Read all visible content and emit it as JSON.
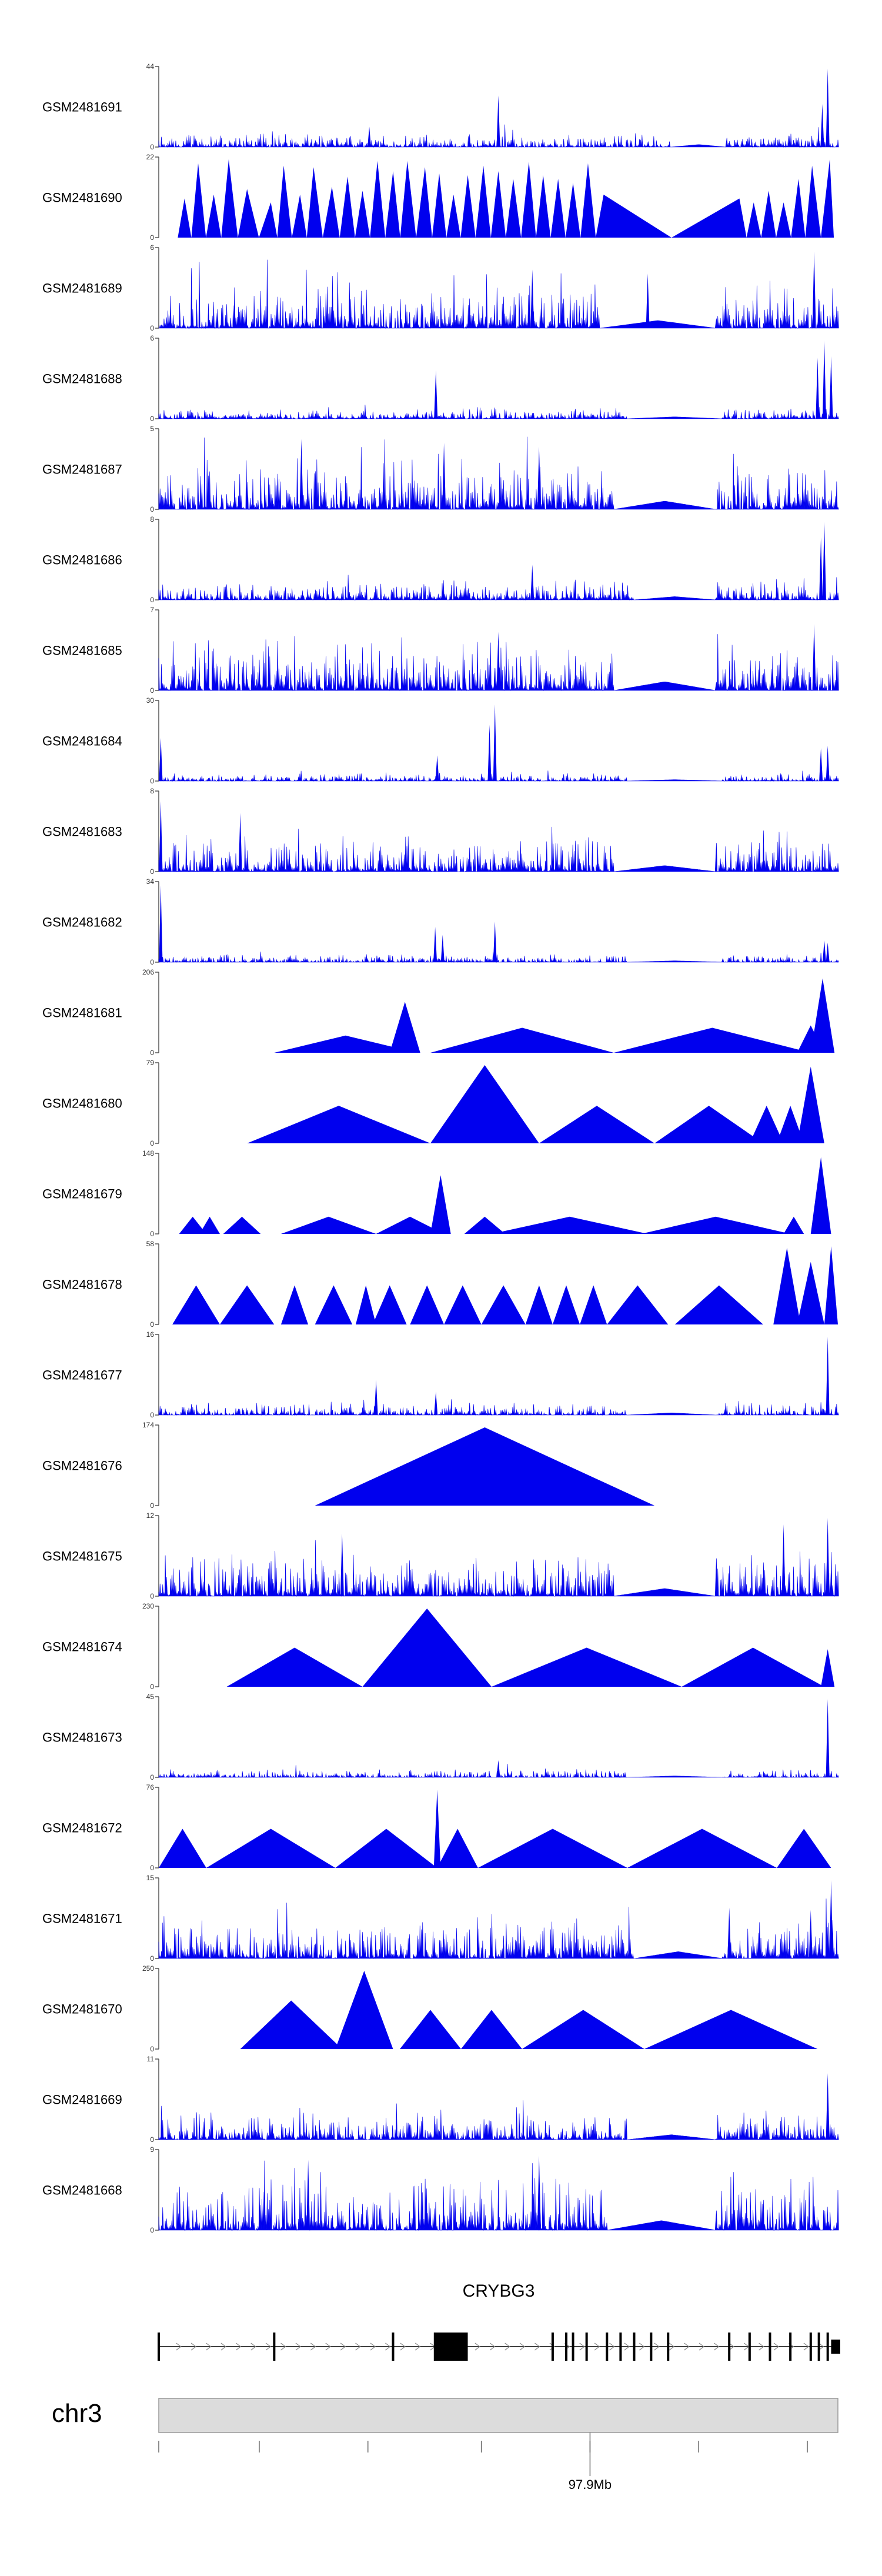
{
  "chart_data": {
    "type": "area",
    "title": "",
    "fill_color": "#0000ee",
    "series": [
      {
        "name": "GSM2481691",
        "ylim": [
          0,
          44
        ],
        "ymin_label": "0",
        "ymax_label": "44",
        "pattern": "spiky",
        "base": 0.09,
        "seed": 1,
        "gaps": [
          [
            0.755,
            0.835
          ]
        ],
        "peaks": [
          [
            0.5,
            0.66
          ],
          [
            0.31,
            0.26
          ],
          [
            0.985,
            1.0
          ],
          [
            0.977,
            0.55
          ]
        ]
      },
      {
        "name": "GSM2481690",
        "ylim": [
          0,
          22
        ],
        "ymin_label": "0",
        "ymax_label": "22",
        "pattern": "triangles",
        "seed": 2,
        "peaks": [
          [
            0.038,
            0.5
          ],
          [
            0.058,
            0.95
          ],
          [
            0.081,
            0.55
          ],
          [
            0.103,
            1.0
          ],
          [
            0.13,
            0.62
          ],
          [
            0.165,
            0.45
          ],
          [
            0.184,
            0.92
          ],
          [
            0.208,
            0.55
          ],
          [
            0.228,
            0.9
          ],
          [
            0.255,
            0.65
          ],
          [
            0.278,
            0.78
          ],
          [
            0.3,
            0.6
          ],
          [
            0.322,
            0.98
          ],
          [
            0.345,
            0.85
          ],
          [
            0.366,
            0.98
          ],
          [
            0.392,
            0.9
          ],
          [
            0.413,
            0.82
          ],
          [
            0.434,
            0.55
          ],
          [
            0.455,
            0.8
          ],
          [
            0.478,
            0.92
          ],
          [
            0.5,
            0.85
          ],
          [
            0.522,
            0.75
          ],
          [
            0.545,
            0.97
          ],
          [
            0.566,
            0.8
          ],
          [
            0.588,
            0.75
          ],
          [
            0.61,
            0.7
          ],
          [
            0.632,
            0.95
          ],
          [
            0.655,
            0.55
          ],
          [
            0.855,
            0.5
          ],
          [
            0.876,
            0.45
          ],
          [
            0.898,
            0.6
          ],
          [
            0.92,
            0.45
          ],
          [
            0.942,
            0.75
          ],
          [
            0.962,
            0.92
          ],
          [
            0.988,
            1.0
          ]
        ]
      },
      {
        "name": "GSM2481689",
        "ylim": [
          0,
          6
        ],
        "ymin_label": "0",
        "ymax_label": "6",
        "pattern": "spiky",
        "base": 0.28,
        "seed": 3,
        "gaps": [
          [
            0.65,
            0.82
          ]
        ],
        "peaks": [
          [
            0.965,
            0.98
          ],
          [
            0.72,
            0.7
          ],
          [
            0.55,
            0.75
          ]
        ]
      },
      {
        "name": "GSM2481688",
        "ylim": [
          0,
          6
        ],
        "ymin_label": "0",
        "ymax_label": "6",
        "pattern": "spiky",
        "base": 0.07,
        "seed": 4,
        "gaps": [
          [
            0.69,
            0.83
          ]
        ],
        "peaks": [
          [
            0.408,
            0.62
          ],
          [
            0.98,
            1.0
          ],
          [
            0.97,
            0.78
          ],
          [
            0.99,
            0.8
          ]
        ]
      },
      {
        "name": "GSM2481687",
        "ylim": [
          0,
          5
        ],
        "ymin_label": "0",
        "ymax_label": "5",
        "pattern": "spiky",
        "base": 0.3,
        "seed": 5,
        "gaps": [
          [
            0.67,
            0.82
          ]
        ],
        "peaks": [
          [
            0.21,
            0.9
          ],
          [
            0.42,
            0.85
          ],
          [
            0.56,
            0.8
          ]
        ]
      },
      {
        "name": "GSM2481686",
        "ylim": [
          0,
          8
        ],
        "ymin_label": "0",
        "ymax_label": "8",
        "pattern": "spiky",
        "base": 0.12,
        "seed": 6,
        "gaps": [
          [
            0.7,
            0.82
          ]
        ],
        "peaks": [
          [
            0.98,
            1.0
          ],
          [
            0.975,
            0.8
          ],
          [
            0.55,
            0.45
          ]
        ]
      },
      {
        "name": "GSM2481685",
        "ylim": [
          0,
          7
        ],
        "ymin_label": "0",
        "ymax_label": "7",
        "pattern": "spiky",
        "base": 0.32,
        "seed": 7,
        "gaps": [
          [
            0.67,
            0.82
          ]
        ],
        "peaks": [
          [
            0.5,
            0.75
          ],
          [
            0.965,
            0.85
          ]
        ]
      },
      {
        "name": "GSM2481684",
        "ylim": [
          0,
          30
        ],
        "ymin_label": "0",
        "ymax_label": "30",
        "pattern": "spiky",
        "base": 0.05,
        "seed": 8,
        "gaps": [
          [
            0.69,
            0.83
          ]
        ],
        "peaks": [
          [
            0.495,
            0.98
          ],
          [
            0.487,
            0.72
          ],
          [
            0.41,
            0.33
          ],
          [
            0.975,
            0.42
          ],
          [
            0.985,
            0.45
          ],
          [
            0.003,
            0.55
          ]
        ]
      },
      {
        "name": "GSM2481683",
        "ylim": [
          0,
          8
        ],
        "ymin_label": "0",
        "ymax_label": "8",
        "pattern": "spiky",
        "base": 0.22,
        "seed": 9,
        "gaps": [
          [
            0.67,
            0.82
          ]
        ],
        "peaks": [
          [
            0.003,
            0.9
          ],
          [
            0.12,
            0.75
          ]
        ]
      },
      {
        "name": "GSM2481682",
        "ylim": [
          0,
          34
        ],
        "ymin_label": "0",
        "ymax_label": "34",
        "pattern": "spiky",
        "base": 0.05,
        "seed": 10,
        "gaps": [
          [
            0.69,
            0.83
          ]
        ],
        "peaks": [
          [
            0.003,
            0.98
          ],
          [
            0.407,
            0.45
          ],
          [
            0.418,
            0.35
          ],
          [
            0.495,
            0.52
          ],
          [
            0.98,
            0.28
          ],
          [
            0.985,
            0.25
          ]
        ]
      },
      {
        "name": "GSM2481681",
        "ylim": [
          0,
          206
        ],
        "ymin_label": "0",
        "ymax_label": "206",
        "pattern": "triangles",
        "seed": 11,
        "segments": [
          [
            0.17,
            0.38,
            0.22
          ],
          [
            0.34,
            0.385,
            0.65
          ],
          [
            0.4,
            0.67,
            0.32
          ],
          [
            0.67,
            0.96,
            0.32
          ],
          [
            0.94,
            0.98,
            0.35
          ],
          [
            0.96,
            0.995,
            0.95
          ]
        ]
      },
      {
        "name": "GSM2481680",
        "ylim": [
          0,
          79
        ],
        "ymin_label": "0",
        "ymax_label": "79",
        "pattern": "triangles",
        "seed": 12,
        "segments": [
          [
            0.13,
            0.4,
            0.48
          ],
          [
            0.4,
            0.56,
            1.0
          ],
          [
            0.56,
            0.73,
            0.48
          ],
          [
            0.73,
            0.89,
            0.48
          ],
          [
            0.87,
            0.92,
            0.48
          ],
          [
            0.91,
            0.95,
            0.48
          ],
          [
            0.94,
            0.98,
            0.98
          ]
        ]
      },
      {
        "name": "GSM2481679",
        "ylim": [
          0,
          148
        ],
        "ymin_label": "0",
        "ymax_label": "148",
        "pattern": "triangles",
        "seed": 13,
        "segments": [
          [
            0.03,
            0.07,
            0.22
          ],
          [
            0.06,
            0.09,
            0.22
          ],
          [
            0.095,
            0.15,
            0.22
          ],
          [
            0.18,
            0.32,
            0.22
          ],
          [
            0.32,
            0.42,
            0.22
          ],
          [
            0.4,
            0.43,
            0.75
          ],
          [
            0.45,
            0.51,
            0.22
          ],
          [
            0.49,
            0.72,
            0.22
          ],
          [
            0.71,
            0.93,
            0.22
          ],
          [
            0.92,
            0.95,
            0.22
          ],
          [
            0.96,
            0.99,
            0.98
          ]
        ]
      },
      {
        "name": "GSM2481678",
        "ylim": [
          0,
          58
        ],
        "ymin_label": "0",
        "ymax_label": "58",
        "pattern": "triangles",
        "seed": 14,
        "segments": [
          [
            0.02,
            0.09,
            0.5
          ],
          [
            0.09,
            0.17,
            0.5
          ],
          [
            0.18,
            0.22,
            0.5
          ],
          [
            0.23,
            0.285,
            0.5
          ],
          [
            0.29,
            0.32,
            0.5
          ],
          [
            0.315,
            0.365,
            0.5
          ],
          [
            0.37,
            0.42,
            0.5
          ],
          [
            0.42,
            0.475,
            0.5
          ],
          [
            0.475,
            0.54,
            0.5
          ],
          [
            0.54,
            0.58,
            0.5
          ],
          [
            0.58,
            0.62,
            0.5
          ],
          [
            0.62,
            0.66,
            0.5
          ],
          [
            0.66,
            0.75,
            0.5
          ],
          [
            0.76,
            0.89,
            0.5
          ],
          [
            0.905,
            0.945,
            0.98
          ],
          [
            0.94,
            0.98,
            0.8
          ],
          [
            0.98,
            1.0,
            1.0
          ]
        ]
      },
      {
        "name": "GSM2481677",
        "ylim": [
          0,
          16
        ],
        "ymin_label": "0",
        "ymax_label": "16",
        "pattern": "spiky",
        "base": 0.08,
        "seed": 15,
        "gaps": [
          [
            0.69,
            0.82
          ]
        ],
        "peaks": [
          [
            0.985,
            1.0
          ],
          [
            0.32,
            0.45
          ],
          [
            0.408,
            0.3
          ]
        ]
      },
      {
        "name": "GSM2481676",
        "ylim": [
          0,
          174
        ],
        "ymin_label": "0",
        "ymax_label": "174",
        "pattern": "triangles",
        "seed": 16,
        "segments": [
          [
            0.23,
            0.73,
            1.0
          ]
        ]
      },
      {
        "name": "GSM2481675",
        "ylim": [
          0,
          12
        ],
        "ymin_label": "0",
        "ymax_label": "12",
        "pattern": "spiky",
        "base": 0.28,
        "seed": 17,
        "gaps": [
          [
            0.67,
            0.82
          ]
        ],
        "peaks": [
          [
            0.985,
            1.0
          ],
          [
            0.92,
            0.92
          ],
          [
            0.27,
            0.8
          ]
        ]
      },
      {
        "name": "GSM2481674",
        "ylim": [
          0,
          230
        ],
        "ymin_label": "0",
        "ymax_label": "230",
        "pattern": "triangles",
        "seed": 17,
        "segments": [
          [
            0.1,
            0.3,
            0.5
          ],
          [
            0.3,
            0.49,
            1.0
          ],
          [
            0.49,
            0.77,
            0.5
          ],
          [
            0.77,
            0.98,
            0.5
          ],
          [
            0.975,
            0.995,
            0.48
          ]
        ]
      },
      {
        "name": "GSM2481673",
        "ylim": [
          0,
          45
        ],
        "ymin_label": "0",
        "ymax_label": "45",
        "pattern": "spiky",
        "base": 0.05,
        "seed": 18,
        "gaps": [
          [
            0.69,
            0.83
          ]
        ],
        "peaks": [
          [
            0.985,
            1.0
          ],
          [
            0.5,
            0.22
          ]
        ]
      },
      {
        "name": "GSM2481672",
        "ylim": [
          0,
          76
        ],
        "ymin_label": "0",
        "ymax_label": "76",
        "pattern": "triangles",
        "seed": 19,
        "segments": [
          [
            0.0,
            0.07,
            0.5
          ],
          [
            0.07,
            0.26,
            0.5
          ],
          [
            0.26,
            0.41,
            0.5
          ],
          [
            0.405,
            0.415,
            1.0
          ],
          [
            0.41,
            0.47,
            0.5
          ],
          [
            0.47,
            0.69,
            0.5
          ],
          [
            0.69,
            0.91,
            0.5
          ],
          [
            0.91,
            0.99,
            0.5
          ]
        ]
      },
      {
        "name": "GSM2481671",
        "ylim": [
          0,
          15
        ],
        "ymin_label": "0",
        "ymax_label": "15",
        "pattern": "spiky",
        "base": 0.25,
        "seed": 20,
        "gaps": [
          [
            0.7,
            0.83
          ]
        ],
        "peaks": [
          [
            0.99,
            1.0
          ],
          [
            0.84,
            0.65
          ],
          [
            0.96,
            0.62
          ]
        ]
      },
      {
        "name": "GSM2481670",
        "ylim": [
          0,
          250
        ],
        "ymin_label": "0",
        "ymax_label": "250",
        "pattern": "triangles",
        "seed": 21,
        "segments": [
          [
            0.12,
            0.27,
            0.62
          ],
          [
            0.26,
            0.345,
            1.0
          ],
          [
            0.355,
            0.445,
            0.5
          ],
          [
            0.445,
            0.535,
            0.5
          ],
          [
            0.535,
            0.715,
            0.5
          ],
          [
            0.715,
            0.97,
            0.5
          ]
        ]
      },
      {
        "name": "GSM2481669",
        "ylim": [
          0,
          11
        ],
        "ymin_label": "0",
        "ymax_label": "11",
        "pattern": "spiky",
        "base": 0.18,
        "seed": 22,
        "gaps": [
          [
            0.69,
            0.82
          ]
        ],
        "peaks": [
          [
            0.985,
            0.85
          ]
        ]
      },
      {
        "name": "GSM2481668",
        "ylim": [
          0,
          9
        ],
        "ymin_label": "0",
        "ymax_label": "9",
        "pattern": "spiky",
        "base": 0.35,
        "seed": 23,
        "gaps": [
          [
            0.66,
            0.82
          ]
        ],
        "peaks": [
          [
            0.56,
            0.95
          ],
          [
            0.22,
            0.9
          ]
        ]
      }
    ],
    "gene_track": {
      "gene_label": "CRYBG3",
      "strand": "+",
      "exons": [
        0.0,
        0.17,
        0.345,
        0.58,
        0.6,
        0.61,
        0.63,
        0.66,
        0.68,
        0.7,
        0.725,
        0.75,
        0.84,
        0.87,
        0.9,
        0.93,
        0.96,
        0.972,
        0.985
      ],
      "big_exon": [
        0.405,
        0.455
      ],
      "end_exon": [
        0.99,
        1.0
      ]
    },
    "ideogram": {
      "chromosome_label": "chr3",
      "tick_label": "97.9Mb",
      "tick_label_position": 0.635,
      "ticks": [
        0.0,
        0.148,
        0.308,
        0.475,
        0.635,
        0.795,
        0.955
      ]
    }
  }
}
